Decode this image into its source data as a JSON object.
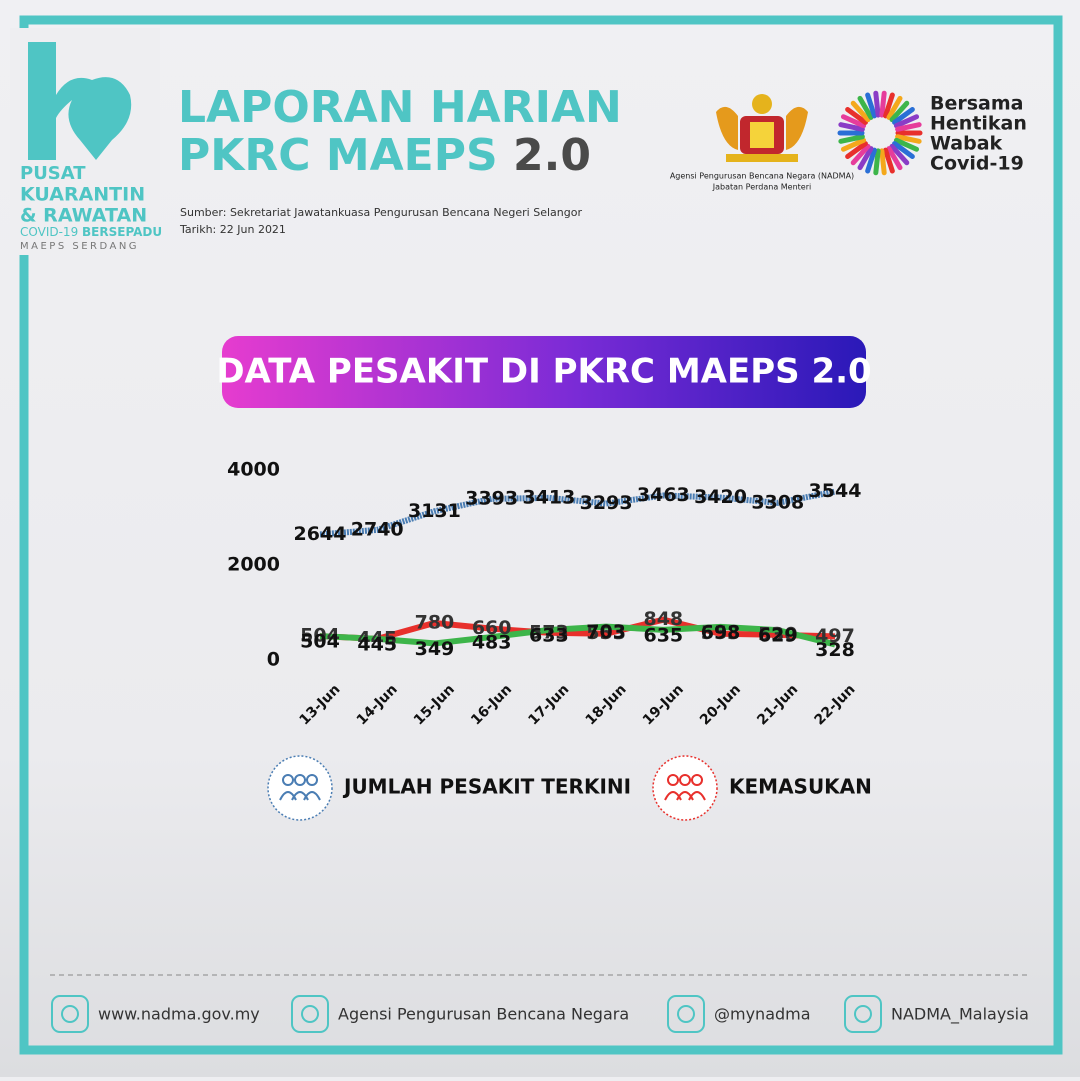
{
  "logo": {
    "line1": "PUSAT",
    "line2": "KUARANTIN",
    "line3": "& RAWATAN",
    "line4a": "COVID-19",
    "line4b": "BERSEPADU",
    "line5": "MAEPS SERDANG"
  },
  "header": {
    "title_line1": "LAPORAN HARIAN",
    "title_line2": "PKRC MAEPS",
    "title_version": "2.0",
    "source": "Sumber: Sekretariat Jawatankuasa Pengurusan Bencana Negeri Selangor",
    "date": "Tarikh: 22 Jun 2021"
  },
  "agency": {
    "name": "Agensi Pengurusan Bencana Negara (NADMA)",
    "dept": "Jabatan Perdana Menteri"
  },
  "campaign": {
    "lines": [
      "Bersama",
      "Hentikan",
      "Wabak",
      "Covid-19"
    ]
  },
  "chart_data": {
    "type": "line",
    "title": "DATA PESAKIT DI PKRC MAEPS 2.0",
    "categories": [
      "13-Jun",
      "14-Jun",
      "15-Jun",
      "16-Jun",
      "17-Jun",
      "18-Jun",
      "19-Jun",
      "20-Jun",
      "21-Jun",
      "22-Jun"
    ],
    "series": [
      {
        "name": "JUMLAH PESAKIT TERKINI",
        "color": "#4a7db3",
        "values": [
          2644,
          2740,
          3131,
          3393,
          3413,
          3293,
          3463,
          3420,
          3308,
          3544
        ]
      },
      {
        "name": "KEMASUKAN",
        "color": "#e8302c",
        "values": [
          504,
          445,
          780,
          660,
          573,
          553,
          848,
          553,
          530,
          497
        ]
      },
      {
        "color": "#3db54a",
        "values": [
          504,
          445,
          349,
          483,
          633,
          703,
          635,
          698,
          629,
          328
        ]
      }
    ],
    "ylim": [
      0,
      4000
    ],
    "yticks": [
      0,
      2000,
      4000
    ],
    "grid": false
  },
  "footer": {
    "links": [
      "www.nadma.gov.my",
      "Agensi Pengurusan Bencana Negara",
      "@mynadma",
      "NADMA_Malaysia"
    ]
  }
}
